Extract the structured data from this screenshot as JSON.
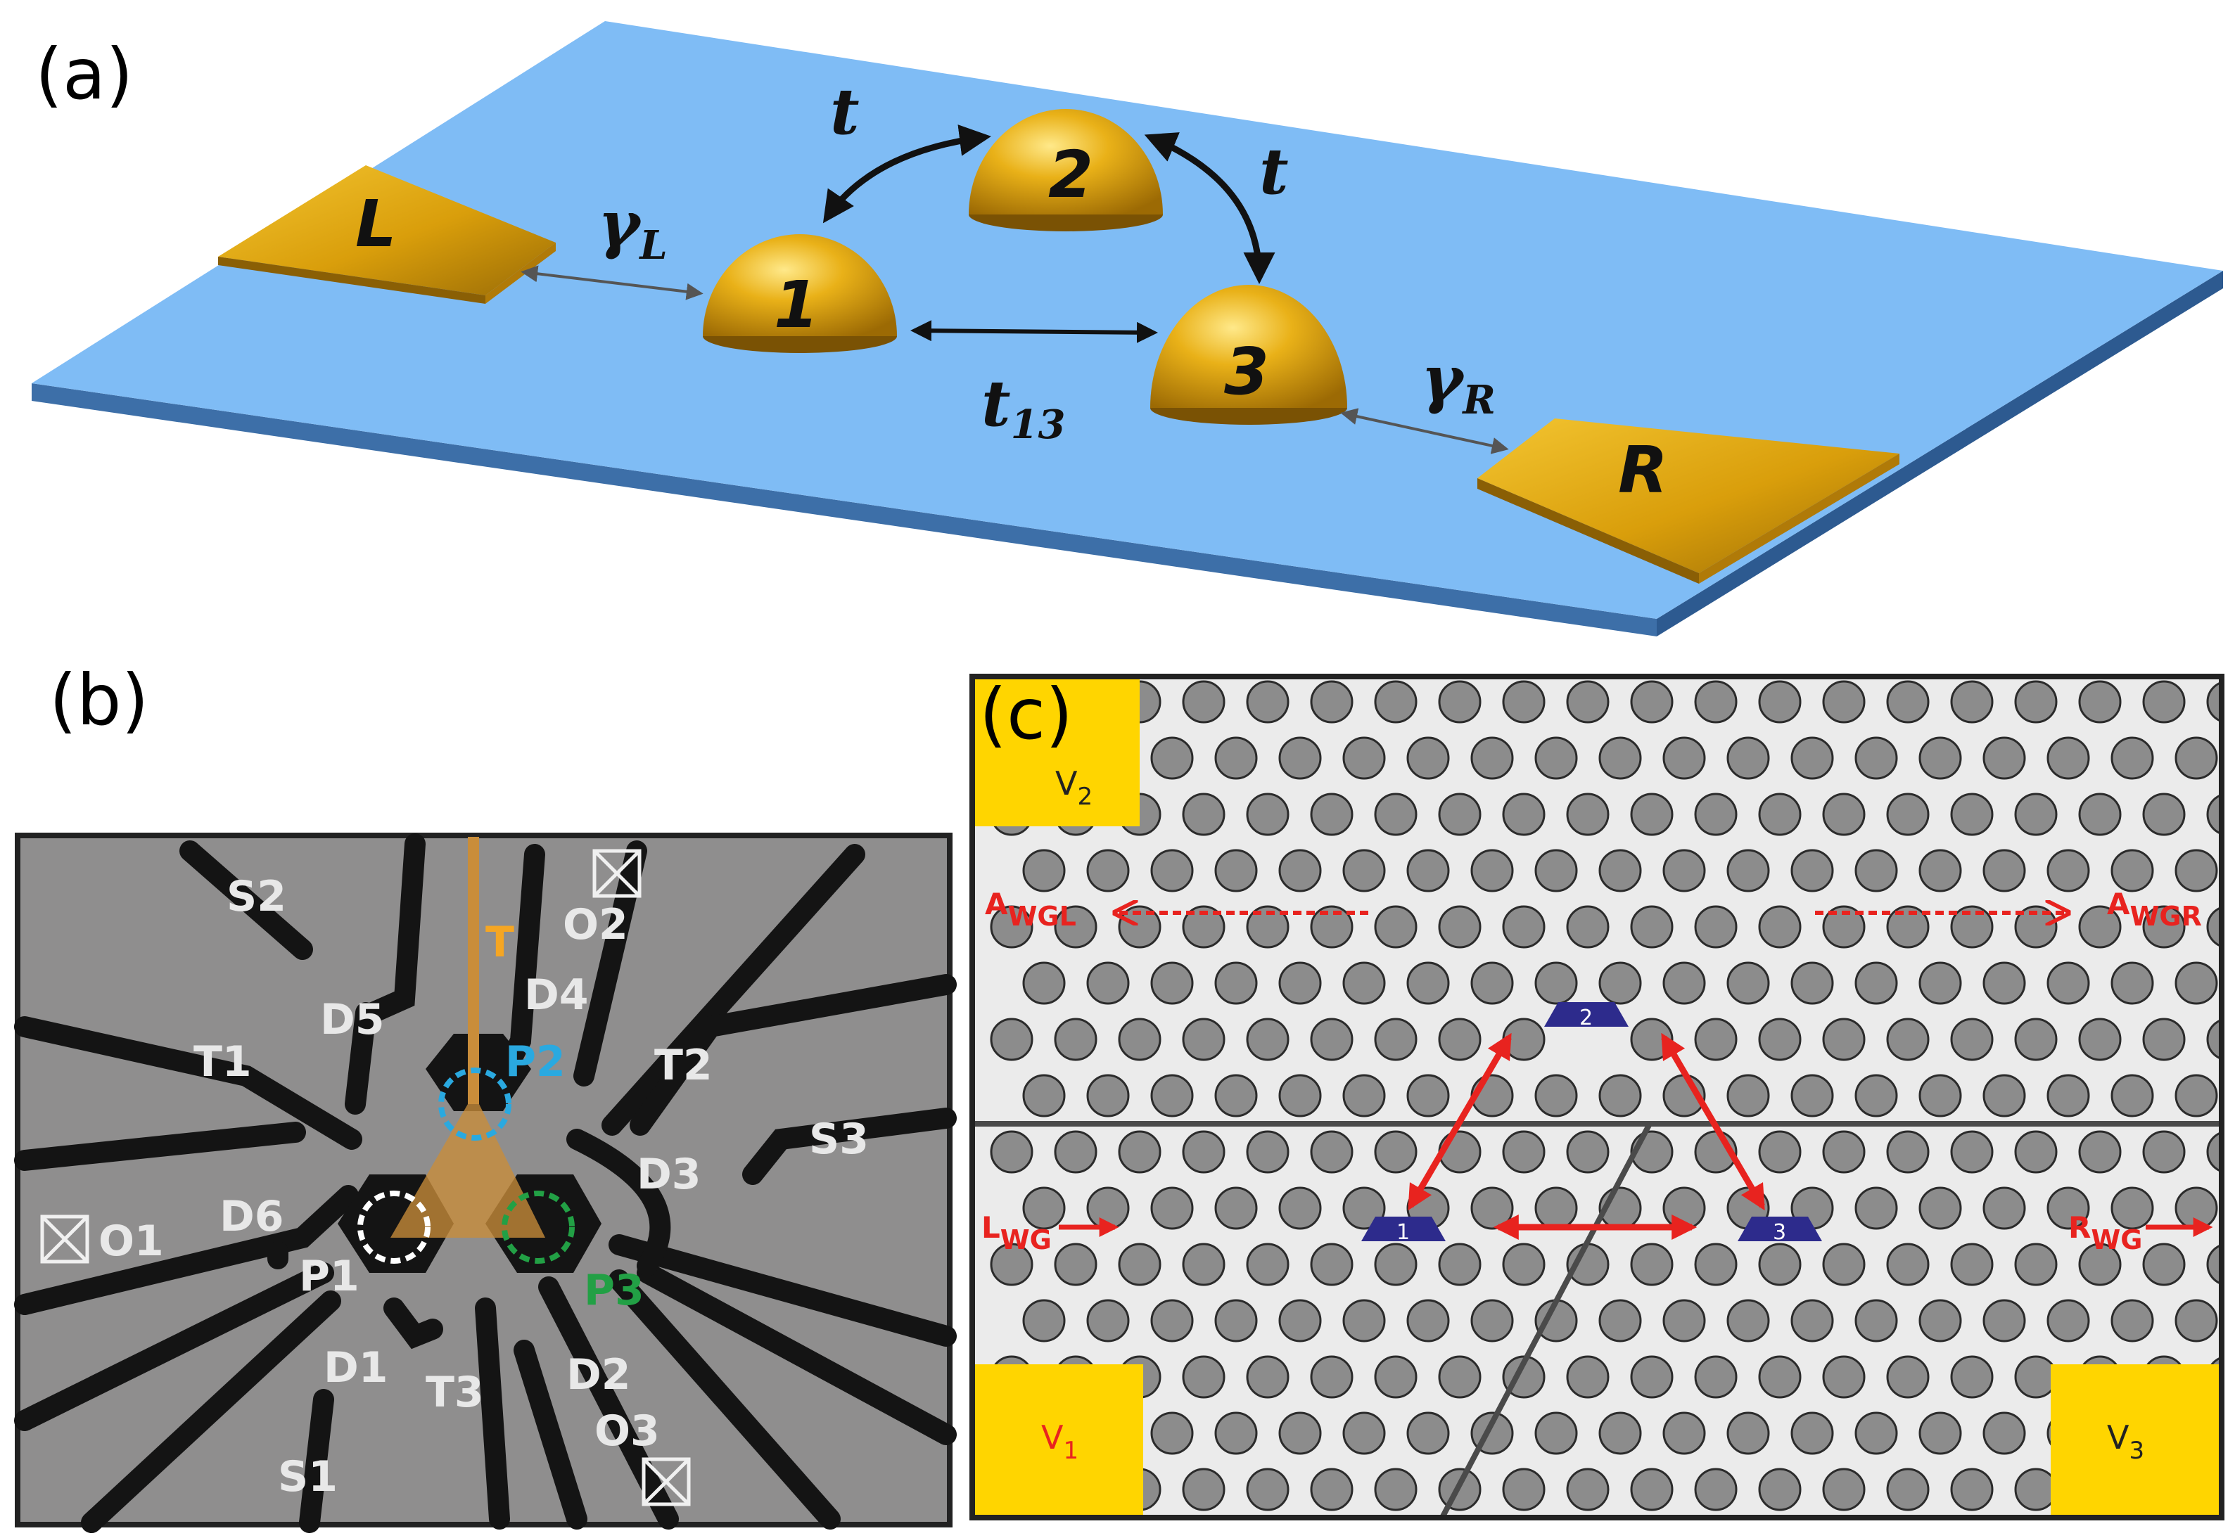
{
  "panel_a": {
    "label": "(a)",
    "lead_left": "L",
    "lead_right": "R",
    "dots": [
      "1",
      "2",
      "3"
    ],
    "coupling_t_12": "t",
    "coupling_t_23": "t",
    "coupling_t13_main": "t",
    "coupling_t13_sub": "13",
    "gamma_L_main": "γ",
    "gamma_L_sub": "L",
    "gamma_R_main": "γ",
    "gamma_R_sub": "R"
  },
  "panel_b": {
    "label": "(b)",
    "gates": {
      "S2": "S2",
      "O2": "O2",
      "T": "T",
      "D4": "D4",
      "D5": "D5",
      "T1": "T1",
      "P2": "P2",
      "T2": "T2",
      "D3": "D3",
      "S3": "S3",
      "O1": "O1",
      "D6": "D6",
      "P1": "P1",
      "P3": "P3",
      "D1": "D1",
      "T3": "T3",
      "D2": "D2",
      "O3": "O3",
      "S1": "S1"
    },
    "colors": {
      "T": "#f5a623",
      "P2": "#2aa9e0",
      "P3": "#22a045",
      "P1": "#ffffff"
    }
  },
  "panel_c": {
    "label": "(c)",
    "V2_main": "V",
    "V2_sub": "2",
    "V1_main": "V",
    "V1_sub": "1",
    "V3_main": "V",
    "V3_sub": "3",
    "AWGL_main": "A",
    "AWGL_sub": "WGL",
    "AWGR_main": "A",
    "AWGR_sub": "WGR",
    "LWG_main": "L",
    "LWG_sub": "WG",
    "RWG_main": "R",
    "RWG_sub": "WG",
    "cavities": [
      "1",
      "2",
      "3"
    ],
    "colors": {
      "arrow": "#e8231f",
      "pad": "#ffd500",
      "cavity": "#2d2b8c"
    }
  }
}
